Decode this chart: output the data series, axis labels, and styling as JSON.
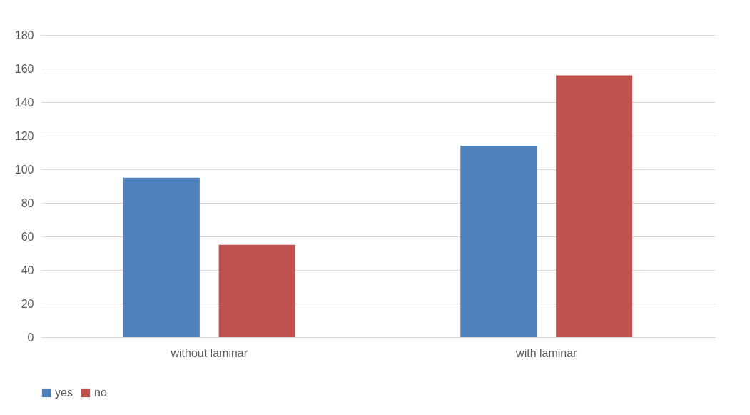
{
  "chart_data": {
    "type": "bar",
    "categories": [
      "without laminar",
      "with laminar"
    ],
    "series": [
      {
        "name": "yes",
        "color": "#4f81bd",
        "values": [
          95,
          114
        ]
      },
      {
        "name": "no",
        "color": "#c0504d",
        "values": [
          55,
          156
        ]
      }
    ],
    "ylim": [
      0,
      180
    ],
    "yticks": [
      0,
      20,
      40,
      60,
      80,
      100,
      120,
      140,
      160,
      180
    ],
    "grid": "y",
    "legend": "bottom"
  }
}
